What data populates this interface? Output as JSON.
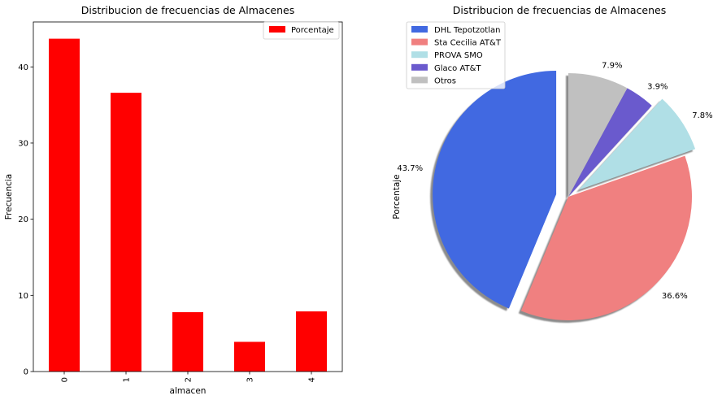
{
  "chart_data": [
    {
      "type": "bar",
      "title": "Distribucion de frecuencias de Almacenes",
      "xlabel": "almacen",
      "ylabel": "Frecuencia",
      "categories": [
        "0",
        "1",
        "2",
        "3",
        "4"
      ],
      "series": [
        {
          "name": "Porcentaje",
          "values": [
            43.7,
            36.6,
            7.8,
            3.9,
            7.9
          ],
          "color": "#ff0000"
        }
      ],
      "ylim": [
        0,
        45.9
      ],
      "yticks": [
        "0",
        "10",
        "20",
        "30",
        "40"
      ],
      "legend": {
        "position": "top-right",
        "labels": [
          "Porcentaje"
        ]
      },
      "grid": false
    },
    {
      "type": "pie",
      "title": "Distribucion de frecuencias de Almacenes",
      "ylabel": "Porcentaje",
      "labels": [
        "DHL Tepotzotlan",
        "Sta Cecilia AT&T",
        "PROVA SMO",
        "Glaco AT&T",
        "Otros"
      ],
      "values": [
        43.7,
        36.6,
        7.8,
        3.9,
        7.9
      ],
      "pct_labels": [
        "43.7%",
        "36.6%",
        "7.8%",
        "3.9%",
        "7.9%"
      ],
      "colors": [
        "#4169e1",
        "#f08080",
        "#b0dfe6",
        "#6a5acd",
        "#c0c0c0"
      ],
      "explode": [
        0.1,
        0.0,
        0.1,
        0.0,
        0.0
      ],
      "shadow": true,
      "legend": {
        "position": "top-left"
      }
    }
  ]
}
